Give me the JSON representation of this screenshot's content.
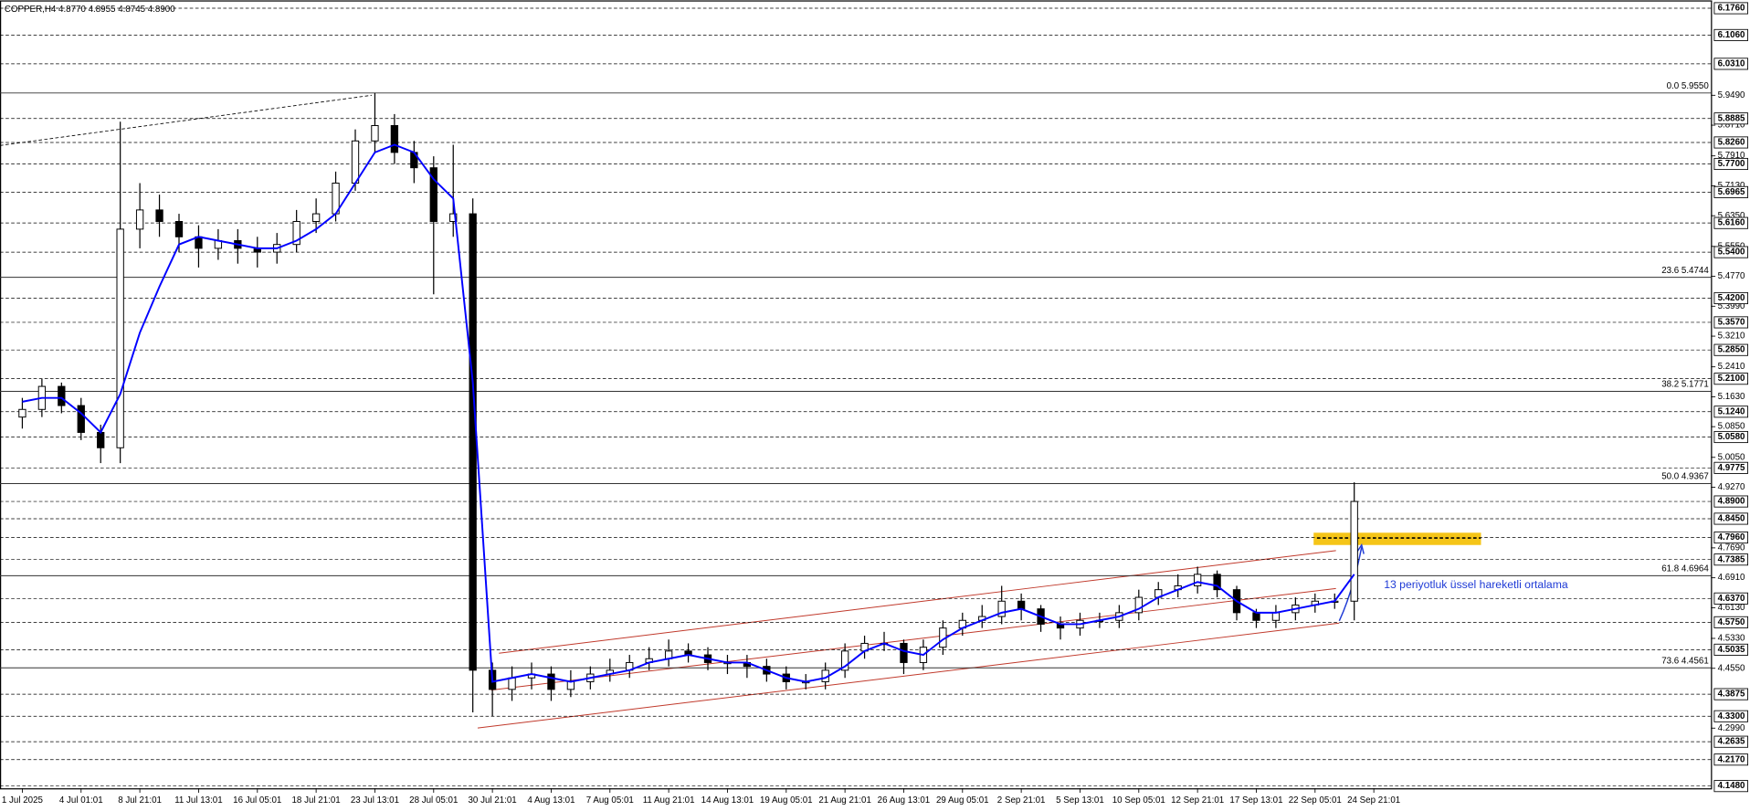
{
  "chart_data": {
    "type": "candlestick",
    "title": "COPPER,H4 4.8770 4.8955 4.8745 4.8900",
    "annotation": "13 periyotluk üssel hareketli ortalama",
    "x_labels": [
      "1 Jul 2025",
      "4 Jul 01:01",
      "8 Jul 21:01",
      "11 Jul 13:01",
      "16 Jul 05:01",
      "18 Jul 21:01",
      "23 Jul 13:01",
      "28 Jul 05:01",
      "30 Jul 21:01",
      "4 Aug 13:01",
      "7 Aug 05:01",
      "11 Aug 21:01",
      "14 Aug 13:01",
      "19 Aug 05:01",
      "21 Aug 21:01",
      "26 Aug 13:01",
      "29 Aug 05:01",
      "2 Sep 21:01",
      "5 Sep 13:01",
      "10 Sep 05:01",
      "12 Sep 21:01",
      "17 Sep 13:01",
      "22 Sep 05:01",
      "24 Sep 21:01"
    ],
    "open": [
      5.11,
      5.13,
      5.19,
      5.14,
      5.07,
      5.03,
      5.6,
      5.65,
      5.62,
      5.58,
      5.55,
      5.57,
      5.55,
      5.54,
      5.56,
      5.62,
      5.64,
      5.72,
      5.83,
      5.87,
      5.8,
      5.76,
      5.62,
      5.64,
      4.45,
      4.4,
      4.43,
      4.44,
      4.4,
      4.42,
      4.44,
      4.45,
      4.47,
      4.48,
      4.5,
      4.49,
      4.47,
      4.47,
      4.46,
      4.44,
      4.42,
      4.42,
      4.45,
      4.5,
      4.52,
      4.52,
      4.47,
      4.51,
      4.56,
      4.58,
      4.59,
      4.63,
      4.61,
      4.57,
      4.56,
      4.58,
      4.58,
      4.6,
      4.64,
      4.66,
      4.67,
      4.7,
      4.66,
      4.6,
      4.58,
      4.6,
      4.62,
      4.63,
      4.63
    ],
    "high": [
      5.16,
      5.21,
      5.2,
      5.16,
      5.09,
      5.88,
      5.72,
      5.69,
      5.64,
      5.61,
      5.6,
      5.6,
      5.58,
      5.59,
      5.65,
      5.68,
      5.75,
      5.86,
      5.955,
      5.9,
      5.83,
      5.79,
      5.82,
      5.68,
      4.47,
      4.46,
      4.47,
      4.46,
      4.45,
      4.46,
      4.48,
      4.49,
      4.51,
      4.53,
      4.52,
      4.51,
      4.49,
      4.49,
      4.48,
      4.46,
      4.44,
      4.47,
      4.52,
      4.54,
      4.55,
      4.53,
      4.53,
      4.58,
      4.6,
      4.62,
      4.67,
      4.65,
      4.62,
      4.59,
      4.6,
      4.6,
      4.62,
      4.66,
      4.68,
      4.7,
      4.72,
      4.71,
      4.67,
      4.61,
      4.62,
      4.64,
      4.65,
      4.65,
      4.94
    ],
    "low": [
      5.08,
      5.11,
      5.12,
      5.05,
      4.99,
      4.99,
      5.55,
      5.58,
      5.54,
      5.5,
      5.52,
      5.51,
      5.5,
      5.51,
      5.54,
      5.59,
      5.62,
      5.7,
      5.8,
      5.77,
      5.72,
      5.43,
      5.58,
      4.34,
      4.33,
      4.37,
      4.4,
      4.37,
      4.38,
      4.4,
      4.42,
      4.43,
      4.45,
      4.46,
      4.47,
      4.45,
      4.44,
      4.43,
      4.42,
      4.4,
      4.4,
      4.4,
      4.43,
      4.48,
      4.5,
      4.44,
      4.45,
      4.49,
      4.54,
      4.56,
      4.57,
      4.58,
      4.55,
      4.53,
      4.54,
      4.56,
      4.56,
      4.58,
      4.62,
      4.64,
      4.65,
      4.64,
      4.58,
      4.56,
      4.56,
      4.58,
      4.6,
      4.61,
      4.58
    ],
    "close": [
      5.13,
      5.19,
      5.14,
      5.07,
      5.03,
      5.6,
      5.65,
      5.62,
      5.58,
      5.55,
      5.57,
      5.55,
      5.54,
      5.56,
      5.62,
      5.64,
      5.72,
      5.83,
      5.87,
      5.8,
      5.76,
      5.62,
      5.64,
      4.45,
      4.4,
      4.43,
      4.44,
      4.4,
      4.42,
      4.44,
      4.45,
      4.47,
      4.48,
      4.5,
      4.49,
      4.47,
      4.47,
      4.46,
      4.44,
      4.42,
      4.42,
      4.45,
      4.5,
      4.52,
      4.52,
      4.47,
      4.51,
      4.56,
      4.58,
      4.59,
      4.63,
      4.61,
      4.57,
      4.56,
      4.58,
      4.58,
      4.6,
      4.64,
      4.66,
      4.67,
      4.7,
      4.66,
      4.6,
      4.58,
      4.6,
      4.62,
      4.63,
      4.63,
      4.89
    ],
    "up_color": "#ffffff",
    "down_color": "#000000",
    "ema": {
      "color": "#0000ff",
      "values": [
        5.15,
        5.16,
        5.16,
        5.12,
        5.07,
        5.17,
        5.33,
        5.45,
        5.56,
        5.58,
        5.57,
        5.56,
        5.55,
        5.55,
        5.57,
        5.6,
        5.64,
        5.72,
        5.8,
        5.82,
        5.8,
        5.73,
        5.68,
        5.2,
        4.42,
        4.43,
        4.44,
        4.43,
        4.42,
        4.43,
        4.44,
        4.45,
        4.47,
        4.48,
        4.49,
        4.48,
        4.47,
        4.47,
        4.45,
        4.43,
        4.42,
        4.43,
        4.46,
        4.5,
        4.52,
        4.5,
        4.49,
        4.53,
        4.56,
        4.58,
        4.6,
        4.61,
        4.59,
        4.57,
        4.57,
        4.58,
        4.59,
        4.61,
        4.64,
        4.66,
        4.68,
        4.67,
        4.63,
        4.6,
        4.6,
        4.61,
        4.62,
        4.63,
        4.7
      ]
    },
    "ylim": [
      4.148,
      6.176
    ],
    "yticks": [
      {
        "value": 5.949,
        "label": "5.9490"
      },
      {
        "value": 5.871,
        "label": "5.8710"
      },
      {
        "value": 5.791,
        "label": "5.7910"
      },
      {
        "value": 5.713,
        "label": "5.7130"
      },
      {
        "value": 5.635,
        "label": "5.6350"
      },
      {
        "value": 5.555,
        "label": "5.5550"
      },
      {
        "value": 5.477,
        "label": "5.4770"
      },
      {
        "value": 5.399,
        "label": "5.3990"
      },
      {
        "value": 5.321,
        "label": "5.3210"
      },
      {
        "value": 5.241,
        "label": "5.2410"
      },
      {
        "value": 5.163,
        "label": "5.1630"
      },
      {
        "value": 5.085,
        "label": "5.0850"
      },
      {
        "value": 5.005,
        "label": "5.0050"
      },
      {
        "value": 4.927,
        "label": "4.9270"
      },
      {
        "value": 4.769,
        "label": "4.7690"
      },
      {
        "value": 4.691,
        "label": "4.6910"
      },
      {
        "value": 4.613,
        "label": "4.6130"
      },
      {
        "value": 4.533,
        "label": "4.5330"
      },
      {
        "value": 4.455,
        "label": "4.4550"
      },
      {
        "value": 4.299,
        "label": "4.2990"
      }
    ],
    "hlines": [
      {
        "value": 6.176,
        "label": "6.1760"
      },
      {
        "value": 6.106,
        "label": "6.1060"
      },
      {
        "value": 6.031,
        "label": "6.0310"
      },
      {
        "value": 5.8885,
        "label": "5.8885"
      },
      {
        "value": 5.826,
        "label": "5.8260"
      },
      {
        "value": 5.77,
        "label": "5.7700"
      },
      {
        "value": 5.6965,
        "label": "5.6965"
      },
      {
        "value": 5.616,
        "label": "5.6160"
      },
      {
        "value": 5.54,
        "label": "5.5400"
      },
      {
        "value": 5.42,
        "label": "5.4200"
      },
      {
        "value": 5.357,
        "label": "5.3570"
      },
      {
        "value": 5.285,
        "label": "5.2850"
      },
      {
        "value": 5.21,
        "label": "5.2100"
      },
      {
        "value": 5.124,
        "label": "5.1240"
      },
      {
        "value": 5.058,
        "label": "5.0580"
      },
      {
        "value": 4.9775,
        "label": "4.9775"
      },
      {
        "value": 4.89,
        "label": "4.8900"
      },
      {
        "value": 4.845,
        "label": "4.8450"
      },
      {
        "value": 4.796,
        "label": "4.7960"
      },
      {
        "value": 4.7385,
        "label": "4.7385"
      },
      {
        "value": 4.637,
        "label": "4.6370"
      },
      {
        "value": 4.575,
        "label": "4.5750"
      },
      {
        "value": 4.5035,
        "label": "4.5035"
      },
      {
        "value": 4.3875,
        "label": "4.3875"
      },
      {
        "value": 4.33,
        "label": "4.3300"
      },
      {
        "value": 4.2635,
        "label": "4.2635"
      },
      {
        "value": 4.217,
        "label": "4.2170"
      },
      {
        "value": 4.148,
        "label": "4.1480"
      }
    ],
    "fib_levels": [
      {
        "value": 5.955,
        "label": "0.0 5.9550"
      },
      {
        "value": 5.4744,
        "label": "23.6 5.4744"
      },
      {
        "value": 5.1771,
        "label": "38.2 5.1771"
      },
      {
        "value": 4.9367,
        "label": "50.0 4.9367"
      },
      {
        "value": 4.6964,
        "label": "61.8 4.6964"
      },
      {
        "value": 4.4561,
        "label": "73.6 4.4561"
      }
    ]
  }
}
